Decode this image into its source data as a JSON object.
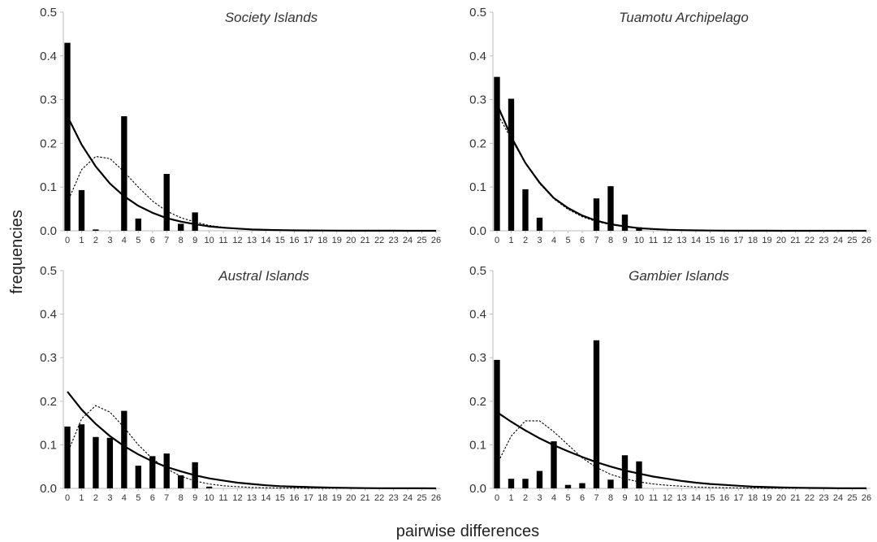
{
  "figure": {
    "ylabel": "frequencies",
    "xlabel": "pairwise differences"
  },
  "chart_data": [
    {
      "type": "bar",
      "title": "Society Islands",
      "x": [
        0,
        1,
        2,
        3,
        4,
        5,
        6,
        7,
        8,
        9,
        10,
        11,
        12,
        13,
        14,
        15,
        16,
        17,
        18,
        19,
        20,
        21,
        22,
        23,
        24,
        25,
        26
      ],
      "ylim": [
        0,
        0.5
      ],
      "yticks": [
        "0.0",
        "0.1",
        "0.2",
        "0.3",
        "0.4",
        "0.5"
      ],
      "series": [
        {
          "kind": "bar",
          "values": [
            0.43,
            0.093,
            0.003,
            0,
            0.262,
            0.028,
            0,
            0.13,
            0.016,
            0.042,
            0,
            0,
            0,
            0,
            0,
            0,
            0,
            0,
            0,
            0,
            0,
            0,
            0,
            0,
            0,
            0,
            0
          ]
        },
        {
          "kind": "line",
          "style": "solid",
          "values": [
            0.262,
            0.197,
            0.147,
            0.108,
            0.079,
            0.057,
            0.041,
            0.029,
            0.021,
            0.015,
            0.01,
            0.007,
            0.005,
            0.003,
            0.002,
            0.0015,
            0.001,
            0.0007,
            0.0005,
            0.0003,
            0.0002,
            0.0001,
            0.0001,
            0.0001,
            0,
            0,
            0
          ]
        },
        {
          "kind": "line",
          "style": "dashed",
          "values": [
            0.065,
            0.14,
            0.17,
            0.165,
            0.135,
            0.1,
            0.068,
            0.045,
            0.03,
            0.02,
            0.012,
            0.008,
            0.005,
            0.003,
            0.002,
            0.0012,
            0.0008,
            0.0005,
            0.0003,
            0.0002,
            0.0001,
            0.0001,
            0,
            0,
            0,
            0,
            0
          ]
        }
      ]
    },
    {
      "type": "bar",
      "title": "Tuamotu Archipelago",
      "x": [
        0,
        1,
        2,
        3,
        4,
        5,
        6,
        7,
        8,
        9,
        10,
        11,
        12,
        13,
        14,
        15,
        16,
        17,
        18,
        19,
        20,
        21,
        22,
        23,
        24,
        25,
        26
      ],
      "ylim": [
        0,
        0.5
      ],
      "yticks": [
        "0.0",
        "0.1",
        "0.2",
        "0.3",
        "0.4",
        "0.5"
      ],
      "series": [
        {
          "kind": "bar",
          "values": [
            0.352,
            0.302,
            0.095,
            0.03,
            0,
            0,
            0,
            0.074,
            0.102,
            0.037,
            0.008,
            0,
            0,
            0,
            0,
            0,
            0,
            0,
            0,
            0,
            0,
            0,
            0,
            0,
            0,
            0,
            0
          ]
        },
        {
          "kind": "line",
          "style": "solid",
          "values": [
            0.29,
            0.215,
            0.155,
            0.11,
            0.075,
            0.052,
            0.035,
            0.023,
            0.015,
            0.01,
            0.006,
            0.004,
            0.0025,
            0.0015,
            0.001,
            0.0006,
            0.0004,
            0.0002,
            0.0001,
            0.0001,
            0,
            0,
            0,
            0,
            0,
            0,
            0
          ]
        },
        {
          "kind": "line",
          "style": "dashed",
          "values": [
            0.27,
            0.21,
            0.155,
            0.108,
            0.073,
            0.049,
            0.032,
            0.021,
            0.014,
            0.009,
            0.005,
            0.003,
            0.002,
            0.0012,
            0.0007,
            0.0004,
            0.0002,
            0.0001,
            0.0001,
            0,
            0,
            0,
            0,
            0,
            0,
            0,
            0
          ]
        }
      ]
    },
    {
      "type": "bar",
      "title": "Austral Islands",
      "x": [
        0,
        1,
        2,
        3,
        4,
        5,
        6,
        7,
        8,
        9,
        10,
        11,
        12,
        13,
        14,
        15,
        16,
        17,
        18,
        19,
        20,
        21,
        22,
        23,
        24,
        25,
        26
      ],
      "ylim": [
        0,
        0.5
      ],
      "yticks": [
        "0.0",
        "0.1",
        "0.2",
        "0.3",
        "0.4",
        "0.5"
      ],
      "series": [
        {
          "kind": "bar",
          "values": [
            0.142,
            0.147,
            0.118,
            0.116,
            0.178,
            0.052,
            0.074,
            0.08,
            0.03,
            0.06,
            0.004,
            0,
            0,
            0,
            0,
            0,
            0,
            0,
            0,
            0,
            0,
            0,
            0,
            0,
            0,
            0,
            0
          ]
        },
        {
          "kind": "line",
          "style": "solid",
          "values": [
            0.222,
            0.181,
            0.148,
            0.12,
            0.097,
            0.078,
            0.062,
            0.049,
            0.039,
            0.03,
            0.023,
            0.018,
            0.013,
            0.01,
            0.007,
            0.005,
            0.004,
            0.003,
            0.002,
            0.0014,
            0.001,
            0.0006,
            0.0004,
            0.0002,
            0.0001,
            0.0001,
            0
          ]
        },
        {
          "kind": "line",
          "style": "dashed",
          "values": [
            0.08,
            0.16,
            0.19,
            0.175,
            0.14,
            0.1,
            0.068,
            0.045,
            0.028,
            0.017,
            0.01,
            0.006,
            0.004,
            0.002,
            0.0013,
            0.0008,
            0.0005,
            0.0003,
            0.0002,
            0.0001,
            0,
            0,
            0,
            0,
            0,
            0,
            0
          ]
        }
      ]
    },
    {
      "type": "bar",
      "title": "Gambier Islands",
      "x": [
        0,
        1,
        2,
        3,
        4,
        5,
        6,
        7,
        8,
        9,
        10,
        11,
        12,
        13,
        14,
        15,
        16,
        17,
        18,
        19,
        20,
        21,
        22,
        23,
        24,
        25,
        26
      ],
      "ylim": [
        0,
        0.5
      ],
      "yticks": [
        "0.0",
        "0.1",
        "0.2",
        "0.3",
        "0.4",
        "0.5"
      ],
      "series": [
        {
          "kind": "bar",
          "values": [
            0.295,
            0.022,
            0.022,
            0.04,
            0.108,
            0.008,
            0.012,
            0.34,
            0.02,
            0.076,
            0.062,
            0,
            0,
            0,
            0,
            0,
            0,
            0,
            0,
            0,
            0,
            0,
            0,
            0,
            0,
            0,
            0
          ]
        },
        {
          "kind": "line",
          "style": "solid",
          "values": [
            0.175,
            0.153,
            0.133,
            0.115,
            0.099,
            0.085,
            0.072,
            0.06,
            0.05,
            0.041,
            0.034,
            0.027,
            0.022,
            0.017,
            0.013,
            0.01,
            0.008,
            0.006,
            0.004,
            0.003,
            0.002,
            0.0015,
            0.001,
            0.0007,
            0.0004,
            0.0002,
            0.0001
          ]
        },
        {
          "kind": "line",
          "style": "dashed",
          "values": [
            0.055,
            0.12,
            0.155,
            0.155,
            0.13,
            0.1,
            0.07,
            0.048,
            0.032,
            0.022,
            0.015,
            0.01,
            0.007,
            0.005,
            0.003,
            0.002,
            0.0014,
            0.0009,
            0.0006,
            0.0004,
            0.0002,
            0.0001,
            0.0001,
            0,
            0,
            0,
            0
          ]
        }
      ]
    }
  ]
}
